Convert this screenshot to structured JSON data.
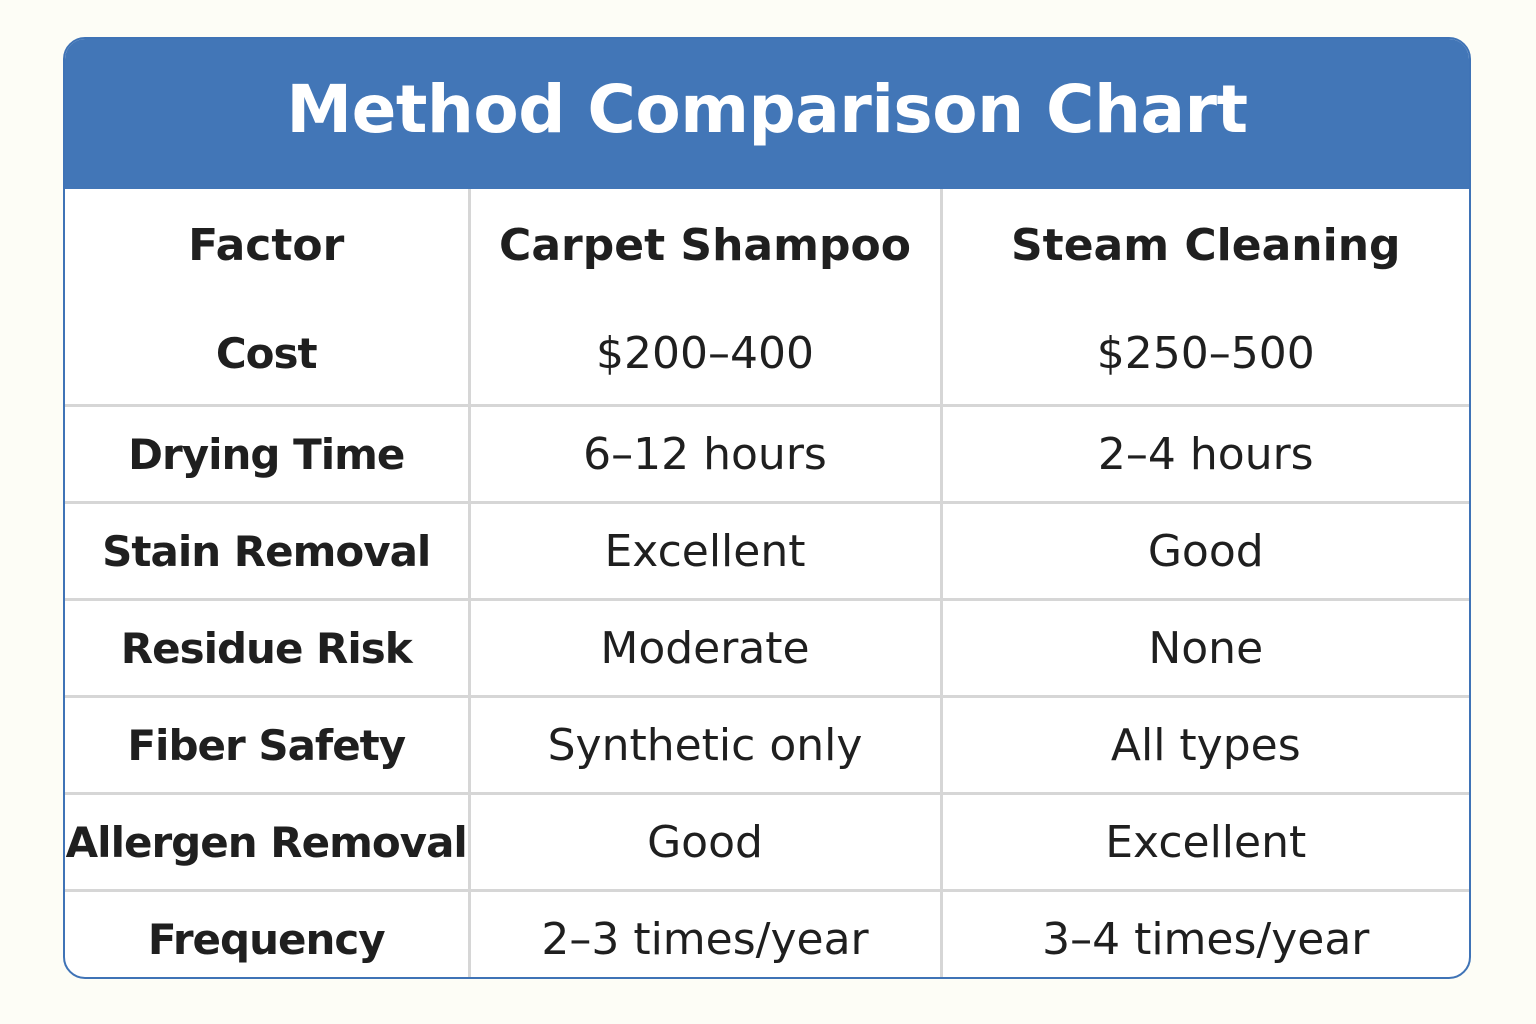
{
  "title": "Method Comparison Chart",
  "chart_data": {
    "type": "table",
    "title": "Method Comparison Chart",
    "columns": [
      "Factor",
      "Carpet Shampoo",
      "Steam Cleaning"
    ],
    "rows": [
      [
        "Cost",
        "$200–400",
        "$250–500"
      ],
      [
        "Drying Time",
        "6–12 hours",
        "2–4 hours"
      ],
      [
        "Stain Removal",
        "Excellent",
        "Good"
      ],
      [
        "Residue Risk",
        "Moderate",
        "None"
      ],
      [
        "Fiber Safety",
        "Synthetic only",
        "All types"
      ],
      [
        "Allergen Removal",
        "Good",
        "Excellent"
      ],
      [
        "Frequency",
        "2–3 times/year",
        "3–4 times/year"
      ]
    ]
  },
  "colors": {
    "header_bg": "#4276b7",
    "border": "#3f73b6",
    "grid": "#d6d6d6",
    "page_bg": "#fdfdf6"
  }
}
